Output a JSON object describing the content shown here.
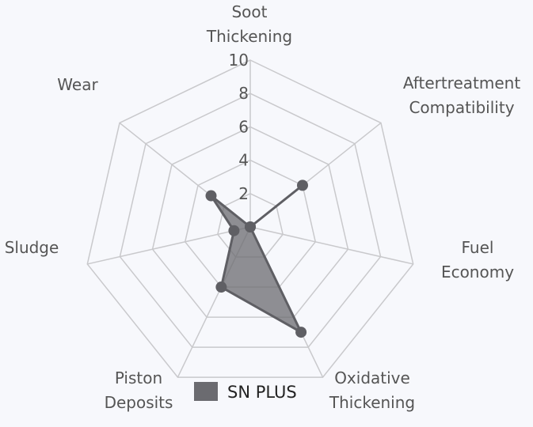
{
  "chart_data": {
    "type": "radar",
    "axes": [
      "Soot Thickening",
      "Aftertreatment Compatibility",
      "Fuel Economy",
      "Oxidative Thickening",
      "Piston Deposits",
      "Sludge",
      "Wear"
    ],
    "axis_label_lines": [
      [
        "Soot",
        "Thickening"
      ],
      [
        "Aftertreatment",
        "Compatibility"
      ],
      [
        "Fuel",
        "Economy"
      ],
      [
        "Oxidative",
        "Thickening"
      ],
      [
        "Piston",
        "Deposits"
      ],
      [
        "Sludge"
      ],
      [
        "Wear"
      ]
    ],
    "rlim": [
      0,
      10
    ],
    "ticks": [
      "2",
      "4",
      "6",
      "8",
      "10"
    ],
    "tick_values": [
      2,
      4,
      6,
      8,
      10
    ],
    "grid": true,
    "legend_position": "bottom",
    "series": [
      {
        "name": "SN PLUS",
        "values": [
          0,
          4,
          0,
          7,
          4,
          1,
          3
        ],
        "color": "#6b6b70"
      }
    ]
  }
}
